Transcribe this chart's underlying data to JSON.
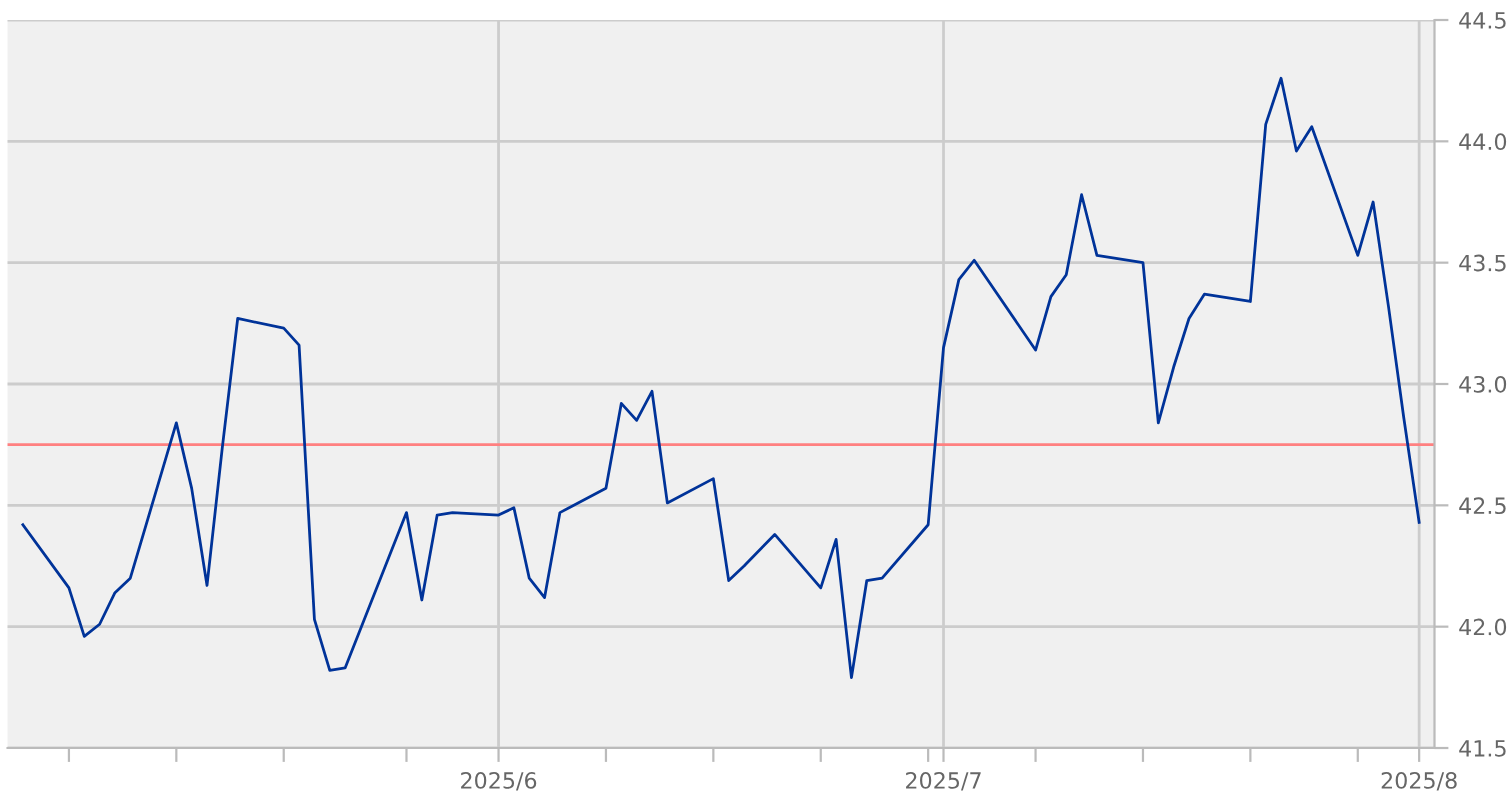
{
  "chart_data": {
    "type": "line",
    "x": [
      "2025-05-02",
      "2025-05-05",
      "2025-05-06",
      "2025-05-07",
      "2025-05-08",
      "2025-05-09",
      "2025-05-12",
      "2025-05-13",
      "2025-05-14",
      "2025-05-15",
      "2025-05-16",
      "2025-05-19",
      "2025-05-20",
      "2025-05-21",
      "2025-05-22",
      "2025-05-23",
      "2025-05-27",
      "2025-05-28",
      "2025-05-29",
      "2025-05-30",
      "2025-06-02",
      "2025-06-03",
      "2025-06-04",
      "2025-06-05",
      "2025-06-06",
      "2025-06-09",
      "2025-06-10",
      "2025-06-11",
      "2025-06-12",
      "2025-06-13",
      "2025-06-16",
      "2025-06-17",
      "2025-06-18",
      "2025-06-20",
      "2025-06-23",
      "2025-06-24",
      "2025-06-25",
      "2025-06-26",
      "2025-06-27",
      "2025-06-30",
      "2025-07-01",
      "2025-07-02",
      "2025-07-03",
      "2025-07-07",
      "2025-07-08",
      "2025-07-09",
      "2025-07-10",
      "2025-07-11",
      "2025-07-14",
      "2025-07-15",
      "2025-07-16",
      "2025-07-17",
      "2025-07-18",
      "2025-07-21",
      "2025-07-22",
      "2025-07-23",
      "2025-07-24",
      "2025-07-25",
      "2025-07-28",
      "2025-07-29",
      "2025-07-30",
      "2025-07-31",
      "2025-08-01"
    ],
    "series": [
      {
        "color": "#003399",
        "values": [
          42.42,
          42.16,
          41.96,
          42.01,
          42.14,
          42.2,
          42.84,
          42.57,
          42.17,
          42.74,
          43.27,
          43.23,
          43.16,
          42.03,
          41.82,
          41.83,
          42.47,
          42.11,
          42.46,
          42.47,
          42.46,
          42.49,
          42.2,
          42.12,
          42.47,
          42.57,
          42.92,
          42.85,
          42.97,
          42.51,
          42.61,
          42.19,
          42.25,
          42.38,
          42.16,
          42.36,
          41.79,
          42.19,
          42.2,
          42.42,
          43.15,
          43.43,
          43.51,
          43.14,
          43.36,
          43.45,
          43.78,
          43.53,
          43.5,
          42.84,
          43.07,
          43.27,
          43.37,
          43.34,
          44.07,
          44.26,
          43.96,
          44.06,
          43.53,
          43.75,
          43.32,
          42.86,
          42.43
        ]
      }
    ],
    "xlim": [
      "2025-05-01",
      "2025-08-02"
    ],
    "xticks": [
      {
        "value": "2025-05-05",
        "label": null
      },
      {
        "value": "2025-05-12",
        "label": null
      },
      {
        "value": "2025-05-19",
        "label": null
      },
      {
        "value": "2025-05-27",
        "label": null
      },
      {
        "value": "2025-06-02",
        "label": "2025/6"
      },
      {
        "value": "2025-06-09",
        "label": null
      },
      {
        "value": "2025-06-16",
        "label": null
      },
      {
        "value": "2025-06-23",
        "label": null
      },
      {
        "value": "2025-06-30",
        "label": null
      },
      {
        "value": "2025-07-01",
        "label": "2025/7"
      },
      {
        "value": "2025-07-07",
        "label": null
      },
      {
        "value": "2025-07-14",
        "label": null
      },
      {
        "value": "2025-07-21",
        "label": null
      },
      {
        "value": "2025-07-28",
        "label": null
      },
      {
        "value": "2025-08-01",
        "label": "2025/8"
      }
    ],
    "ylim": [
      41.5,
      44.5
    ],
    "yticks": [
      {
        "value": 41.5,
        "label": "41.5"
      },
      {
        "value": 42.0,
        "label": "42.0"
      },
      {
        "value": 42.5,
        "label": "42.5"
      },
      {
        "value": 43.0,
        "label": "43.0"
      },
      {
        "value": 43.5,
        "label": "43.5"
      },
      {
        "value": 44.0,
        "label": "44.0"
      },
      {
        "value": 44.5,
        "label": "44.5"
      }
    ],
    "ref_lines": [
      {
        "axis": "y",
        "value": 42.75,
        "color": "#ff8080"
      }
    ],
    "grid": true,
    "legend": false,
    "marker": "none",
    "line_style": "solid"
  }
}
